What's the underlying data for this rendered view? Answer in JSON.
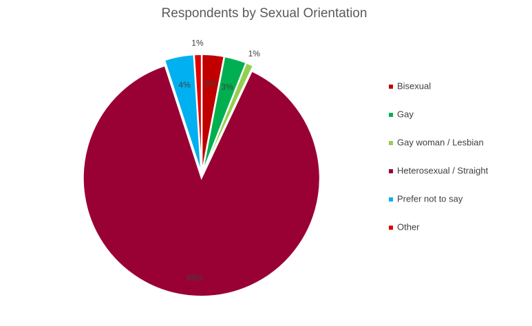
{
  "chart_data": {
    "type": "pie",
    "title": "Respondents by Sexual Orientation",
    "categories": [
      "Bisexual",
      "Gay",
      "Gay woman / Lesbian",
      "Heterosexual / Straight",
      "Prefer not to say",
      "Other"
    ],
    "values": [
      3,
      3,
      1,
      88,
      4,
      1
    ],
    "value_labels": [
      "3%",
      "3%",
      "1%",
      "88%",
      "4%",
      "1%"
    ],
    "colors": [
      "#c00000",
      "#00b050",
      "#92d050",
      "#990033",
      "#00b0f0",
      "#e00000"
    ],
    "legend": "right"
  }
}
